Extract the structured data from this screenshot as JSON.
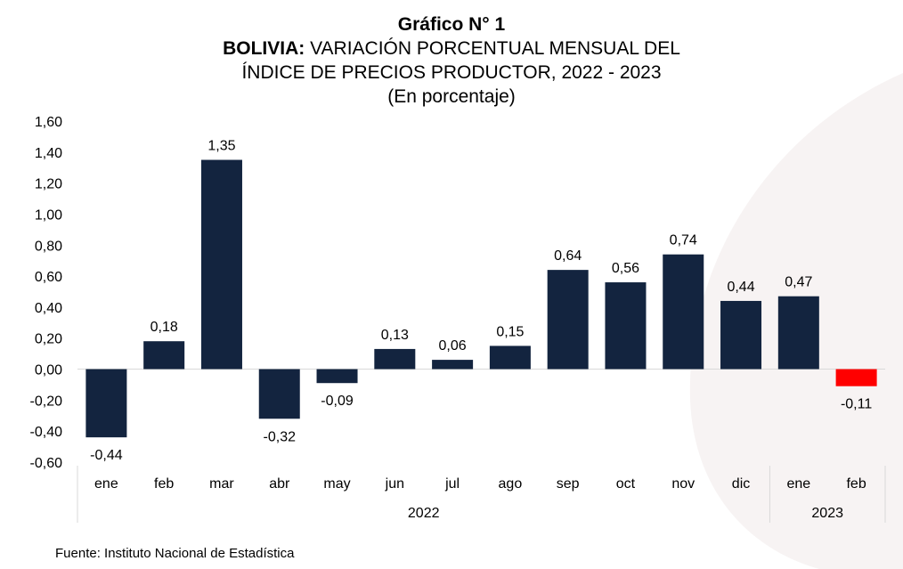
{
  "header": {
    "title": "Gráfico N° 1",
    "subtitle_bold": "BOLIVIA:",
    "subtitle_rest": " VARIACIÓN PORCENTUAL MENSUAL DEL",
    "subtitle_line2": "ÍNDICE DE PRECIOS PRODUCTOR, 2022 - 2023",
    "units": "(En porcentaje)"
  },
  "source": "Fuente: Instituto Nacional de Estadística",
  "colors": {
    "bar": "#13243f",
    "negative_last": "#ff0000"
  },
  "chart_data": {
    "type": "bar",
    "title": "BOLIVIA: VARIACIÓN PORCENTUAL MENSUAL DEL ÍNDICE DE PRECIOS PRODUCTOR, 2022 - 2023",
    "ylabel": "(En porcentaje)",
    "ylim": [
      -0.6,
      1.6
    ],
    "ytick_step": 0.2,
    "ytick_labels": [
      "-0,60",
      "-0,40",
      "-0,20",
      "0,00",
      "0,20",
      "0,40",
      "0,60",
      "0,80",
      "1,00",
      "1,20",
      "1,40",
      "1,60"
    ],
    "categories": [
      "ene",
      "feb",
      "mar",
      "abr",
      "may",
      "jun",
      "jul",
      "ago",
      "sep",
      "oct",
      "nov",
      "dic",
      "ene",
      "feb"
    ],
    "groups": [
      {
        "label": "2022",
        "count": 12
      },
      {
        "label": "2023",
        "count": 2
      }
    ],
    "values": [
      -0.44,
      0.18,
      1.35,
      -0.32,
      -0.09,
      0.13,
      0.06,
      0.15,
      0.64,
      0.56,
      0.74,
      0.44,
      0.47,
      -0.11
    ],
    "value_labels": [
      "-0,44",
      "0,18",
      "1,35",
      "-0,32",
      "-0,09",
      "0,13",
      "0,06",
      "0,15",
      "0,64",
      "0,56",
      "0,74",
      "0,44",
      "0,47",
      "-0,11"
    ],
    "highlight_index": 13,
    "grid": false
  }
}
